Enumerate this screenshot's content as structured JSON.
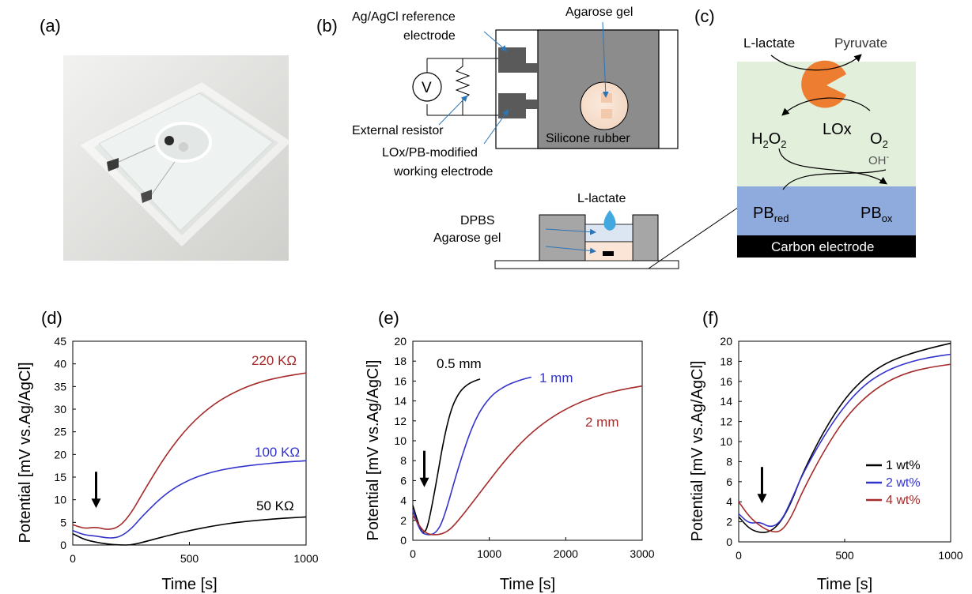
{
  "panels": {
    "a": {
      "label": "(a)"
    },
    "b": {
      "label": "(b)",
      "ref_electrode": "Ag/AgCl reference",
      "ref_electrode2": "electrode",
      "agarose_top": "Agarose gel",
      "voltmeter": "V",
      "external_resistor": "External resistor",
      "working1": "LOx/PB-modified",
      "working2": "working electrode",
      "silicone": "Silicone rubber",
      "lactate": "L-lactate",
      "dpbs": "DPBS",
      "agarose_bottom": "Agarose gel"
    },
    "c": {
      "label": "(c)",
      "lactate": "L-lactate",
      "pyruvate": "Pyruvate",
      "h2o2": "H",
      "h2o2_sub1": "2",
      "h2o2_o": "O",
      "h2o2_sub2": "2",
      "lox": "LOx",
      "o2": "O",
      "o2_sub": "2",
      "oh": "OH",
      "oh_sup": "-",
      "pb_red": "PB",
      "pb_red_sub": "red",
      "pb_ox": "PB",
      "pb_ox_sub": "ox",
      "carbon": "Carbon electrode",
      "colors": {
        "enzyme_layer": "#e2efda",
        "pb_layer": "#8faadc",
        "electrode": "#000000",
        "lox": "#ed7d31"
      }
    }
  },
  "chart_data": [
    {
      "panel_label": "(d)",
      "type": "line",
      "xlabel": "Time [s]",
      "ylabel": "Potential [mV vs.Ag/AgCl]",
      "xlim": [
        0,
        1000
      ],
      "ylim": [
        0,
        45
      ],
      "xticks": [
        0,
        500,
        1000
      ],
      "yticks": [
        0,
        5,
        10,
        15,
        20,
        25,
        30,
        35,
        40,
        45
      ],
      "arrow_at": {
        "x": 100,
        "y": 8.5
      },
      "series": [
        {
          "label": "220 KΩ",
          "color": "#a52a2a",
          "x": [
            0,
            50,
            100,
            150,
            200,
            250,
            300,
            400,
            500,
            600,
            700,
            800,
            900,
            1000
          ],
          "y": [
            4.5,
            3.6,
            4.0,
            3.3,
            4.0,
            7.0,
            11.5,
            20.0,
            26.5,
            31.0,
            34.0,
            36.0,
            37.2,
            38.0
          ]
        },
        {
          "label": "100 KΩ",
          "color": "#3333cc",
          "x": [
            0,
            50,
            100,
            150,
            200,
            250,
            300,
            400,
            500,
            600,
            700,
            800,
            900,
            1000
          ],
          "y": [
            3.2,
            2.2,
            2.0,
            1.5,
            1.7,
            3.5,
            6.5,
            11.5,
            14.5,
            16.2,
            17.2,
            17.8,
            18.3,
            18.6
          ]
        },
        {
          "label": "50 KΩ",
          "color": "#000000",
          "x": [
            0,
            50,
            100,
            150,
            200,
            250,
            300,
            400,
            500,
            600,
            700,
            800,
            900,
            1000
          ],
          "y": [
            2.5,
            1.2,
            0.6,
            0.2,
            0.0,
            0.0,
            0.6,
            2.0,
            3.2,
            4.2,
            5.0,
            5.5,
            5.9,
            6.2
          ]
        }
      ]
    },
    {
      "panel_label": "(e)",
      "type": "line",
      "xlabel": "Time [s]",
      "ylabel": "Potential [mV vs.Ag/AgCl]",
      "xlim": [
        0,
        3000
      ],
      "ylim": [
        0,
        20
      ],
      "xticks": [
        0,
        1000,
        2000,
        3000
      ],
      "yticks": [
        0,
        2,
        4,
        6,
        8,
        10,
        12,
        14,
        16,
        18,
        20
      ],
      "arrow_at": {
        "x": 150,
        "y": 5.5
      },
      "series": [
        {
          "label": "0.5 mm",
          "color": "#000000",
          "x": [
            0,
            100,
            150,
            200,
            300,
            400,
            500,
            600,
            700,
            800,
            880
          ],
          "y": [
            3.5,
            1.0,
            0.7,
            1.5,
            5.5,
            10.0,
            13.2,
            14.8,
            15.6,
            16.0,
            16.2
          ]
        },
        {
          "label": "1 mm",
          "color": "#3333cc",
          "x": [
            0,
            100,
            200,
            300,
            400,
            600,
            800,
            1000,
            1200,
            1400,
            1550
          ],
          "y": [
            3.0,
            0.8,
            0.5,
            0.7,
            2.0,
            7.5,
            12.0,
            14.4,
            15.5,
            16.1,
            16.4
          ]
        },
        {
          "label": "2 mm",
          "color": "#a52a2a",
          "x": [
            0,
            150,
            300,
            450,
            600,
            900,
            1200,
            1500,
            1800,
            2100,
            2400,
            2700,
            3000
          ],
          "y": [
            2.5,
            0.7,
            0.5,
            0.8,
            2.0,
            5.0,
            8.0,
            10.5,
            12.3,
            13.6,
            14.5,
            15.1,
            15.5
          ]
        }
      ]
    },
    {
      "panel_label": "(f)",
      "type": "line",
      "xlabel": "Time [s]",
      "ylabel": "Potential [mV vs.Ag/AgCl]",
      "xlim": [
        0,
        1000
      ],
      "ylim": [
        0,
        20
      ],
      "xticks": [
        0,
        500,
        1000
      ],
      "yticks": [
        0,
        2,
        4,
        6,
        8,
        10,
        12,
        14,
        16,
        18,
        20
      ],
      "arrow_at": {
        "x": 110,
        "y": 4.0
      },
      "legend_position": "right",
      "series": [
        {
          "label": "1 wt%",
          "color": "#000000",
          "x": [
            0,
            50,
            100,
            150,
            200,
            250,
            300,
            400,
            500,
            600,
            700,
            800,
            900,
            1000
          ],
          "y": [
            2.5,
            1.3,
            0.9,
            1.0,
            2.0,
            4.0,
            6.8,
            11.0,
            14.3,
            16.5,
            17.9,
            18.7,
            19.3,
            19.8
          ]
        },
        {
          "label": "2 wt%",
          "color": "#3333cc",
          "x": [
            0,
            50,
            100,
            150,
            200,
            250,
            300,
            400,
            500,
            600,
            700,
            800,
            900,
            1000
          ],
          "y": [
            2.8,
            1.8,
            2.0,
            1.4,
            2.0,
            4.2,
            6.7,
            10.5,
            13.6,
            15.8,
            17.1,
            17.9,
            18.4,
            18.7
          ]
        },
        {
          "label": "4 wt%",
          "color": "#a52a2a",
          "x": [
            0,
            50,
            100,
            150,
            200,
            250,
            300,
            400,
            500,
            600,
            700,
            800,
            900,
            1000
          ],
          "y": [
            4.0,
            2.5,
            1.6,
            1.0,
            1.0,
            2.5,
            5.0,
            9.0,
            12.3,
            14.5,
            16.0,
            16.9,
            17.4,
            17.7
          ]
        }
      ]
    }
  ]
}
